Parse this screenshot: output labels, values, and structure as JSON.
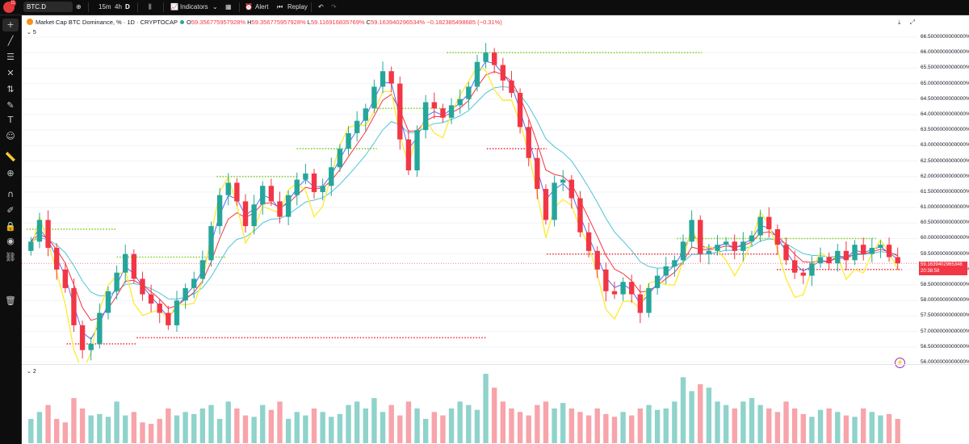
{
  "topbar": {
    "avatar_badge": "11",
    "symbol": "BTC.D",
    "intervals": [
      "15m",
      "4h",
      "D"
    ],
    "indicators_label": "Indicators",
    "alert_label": "Alert",
    "replay_label": "Replay"
  },
  "legend": {
    "title": "Market Cap BTC Dominance, % · 1D · CRYPTOCAP",
    "o_label": "O",
    "o": "59.3567759579​28%",
    "h_label": "H",
    "h": "59.356775957928%",
    "l_label": "L",
    "l": "59.116916835769%",
    "c_label": "C",
    "c": "59.163940296534%",
    "change": "−0.182385498685 (−0.31%)",
    "indicator_count": "5"
  },
  "volume_pane": {
    "count": "2"
  },
  "price_axis": {
    "ticks": [
      "66.5000000000000%",
      "66.0000000000000%",
      "65.5000000000000%",
      "65.0000000000000%",
      "64.5000000000000%",
      "64.0000000000000%",
      "63.5000000000000%",
      "63.0000000000000%",
      "62.5000000000000%",
      "62.0000000000000%",
      "61.5000000000000%",
      "61.0000000000000%",
      "60.5000000000000%",
      "60.0000000000000%",
      "59.5000000000000%",
      "59.0000000000000%",
      "58.5000000000000%",
      "58.0000000000000%",
      "57.5000000000000%",
      "57.0000000000000%",
      "56.5000000000000%",
      "56.0000000000000%"
    ],
    "last_price": "59.1639402965348",
    "countdown": "20:38:58"
  },
  "chart_data": {
    "type": "candlestick",
    "ylim": [
      56.0,
      66.5
    ],
    "colors": {
      "up": "#26a69a",
      "down": "#f23645",
      "ema_fast": "#5b6cf0",
      "ema_mid": "#f23645",
      "ema_slow": "#4fc3d9",
      "oscillator": "#ffeb3b",
      "support": "#f23645",
      "resistance": "#7ed321"
    },
    "closes": [
      59.9,
      60.6,
      59.7,
      59.0,
      58.4,
      57.2,
      56.4,
      56.6,
      57.6,
      58.3,
      58.9,
      59.5,
      58.7,
      58.2,
      57.9,
      57.6,
      57.2,
      58.0,
      58.4,
      58.7,
      59.3,
      60.4,
      61.4,
      61.8,
      61.2,
      60.4,
      61.1,
      61.7,
      61.2,
      60.7,
      61.4,
      61.9,
      62.1,
      61.5,
      61.7,
      62.3,
      62.9,
      63.4,
      63.8,
      64.2,
      64.9,
      65.4,
      65.0,
      63.2,
      62.2,
      63.5,
      64.4,
      64.2,
      63.9,
      64.3,
      64.5,
      64.9,
      65.7,
      66.0,
      65.6,
      65.1,
      64.7,
      63.6,
      62.6,
      61.6,
      60.6,
      61.8,
      61.9,
      61.3,
      60.2,
      59.6,
      59.0,
      58.3,
      58.2,
      58.6,
      58.2,
      57.6,
      58.4,
      58.8,
      59.1,
      59.3,
      59.9,
      60.6,
      59.5,
      59.6,
      59.8,
      59.9,
      59.6,
      59.9,
      60.1,
      60.7,
      60.3,
      59.8,
      59.3,
      58.9,
      58.8,
      59.2,
      59.4,
      59.2,
      59.6,
      59.3,
      59.8,
      59.5,
      59.7,
      59.8,
      59.4,
      59.2
    ],
    "volume": [
      0.35,
      0.45,
      0.55,
      0.35,
      0.3,
      0.65,
      0.5,
      0.4,
      0.42,
      0.38,
      0.6,
      0.4,
      0.45,
      0.3,
      0.28,
      0.35,
      0.5,
      0.4,
      0.45,
      0.42,
      0.5,
      0.55,
      0.35,
      0.6,
      0.5,
      0.4,
      0.38,
      0.55,
      0.48,
      0.6,
      0.35,
      0.45,
      0.4,
      0.5,
      0.45,
      0.38,
      0.42,
      0.55,
      0.6,
      0.5,
      0.65,
      0.45,
      0.55,
      0.4,
      0.6,
      0.5,
      0.35,
      0.45,
      0.4,
      0.5,
      0.6,
      0.55,
      0.48,
      1.0,
      0.8,
      0.6,
      0.5,
      0.45,
      0.4,
      0.55,
      0.6,
      0.5,
      0.58,
      0.5,
      0.45,
      0.4,
      0.5,
      0.42,
      0.38,
      0.45,
      0.4,
      0.5,
      0.55,
      0.48,
      0.5,
      0.6,
      0.95,
      0.75,
      0.85,
      0.8,
      0.6,
      0.55,
      0.5,
      0.6,
      0.65,
      0.55,
      0.5,
      0.45,
      0.6,
      0.5,
      0.42,
      0.38,
      0.48,
      0.5,
      0.45,
      0.4,
      0.38,
      0.5,
      0.45,
      0.4,
      0.42,
      0.35
    ]
  }
}
